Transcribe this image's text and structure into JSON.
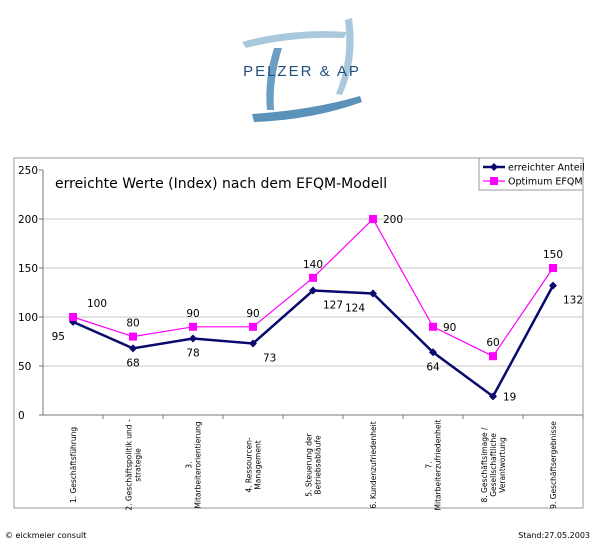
{
  "logo": {
    "text": "PELZER & AP"
  },
  "chart_data": {
    "type": "line",
    "title": "erreichte Werte (Index) nach dem EFQM-Modell",
    "categories": [
      [
        "1. Geschäftsführung"
      ],
      [
        "2. Geschäftspolitik und -",
        "strategie"
      ],
      [
        "3.",
        "Mitarbeiterorientierung"
      ],
      [
        "4. Ressourcen-",
        "Management"
      ],
      [
        "5. Steuerung der",
        "Betriebsabläufe"
      ],
      [
        "6. Kundenzufriedenheit"
      ],
      [
        "7.",
        "Mitarbeiterzufriedenheit"
      ],
      [
        "8. Geschäftsimage /",
        "Gesellschaftliche",
        "Verantwortung"
      ],
      [
        "9. Geschäftsergebnisse"
      ]
    ],
    "series": [
      {
        "name": "erreichter Anteil",
        "color": "#0a0a6e",
        "marker": "diamond",
        "values": [
          95,
          68,
          78,
          73,
          127,
          124,
          64,
          19,
          132
        ],
        "label_pos": [
          "below-left",
          "below",
          "below",
          "below-right",
          "below-right",
          "below-left",
          "below",
          "right",
          "below-right"
        ]
      },
      {
        "name": "Optimum EFQM",
        "color": "#ff00ff",
        "marker": "square",
        "values": [
          100,
          80,
          90,
          90,
          140,
          200,
          90,
          60,
          150
        ],
        "label_pos": [
          "above-right",
          "above",
          "above",
          "above",
          "above",
          "right",
          "right",
          "above",
          "above"
        ]
      }
    ],
    "yticks": [
      0,
      50,
      100,
      150,
      200,
      250
    ],
    "ylim": [
      0,
      250
    ],
    "grid": true,
    "legend": "top-right"
  },
  "footer": {
    "left": "© eickmeier consult",
    "right": "Stand:27.05.2003"
  }
}
